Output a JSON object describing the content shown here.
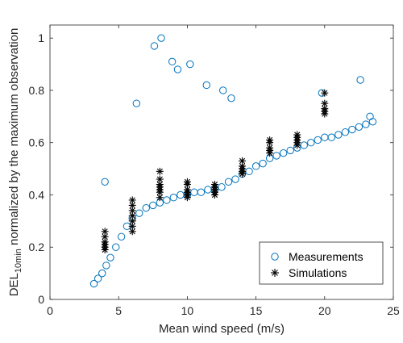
{
  "chart_data": {
    "type": "scatter",
    "xlabel": "Mean wind speed (m/s)",
    "ylabel_main": "DEL",
    "ylabel_sub": "10min",
    "ylabel_rest": " normalized by the maximum observation",
    "xlim": [
      0,
      25
    ],
    "ylim": [
      0,
      1.05
    ],
    "xticks": [
      0,
      5,
      10,
      15,
      20,
      25
    ],
    "yticks": [
      0,
      0.2,
      0.4,
      0.6,
      0.8,
      1
    ],
    "ytick_labels": [
      "0",
      "0.2",
      "0.4",
      "0.6",
      "0.8",
      "1"
    ],
    "grid": false,
    "legend_position": "bottom-right",
    "colors": {
      "measurements": "#0072BD",
      "simulations": "#000000"
    },
    "series": [
      {
        "name": "Measurements",
        "marker": "open-circle",
        "x": [
          3.2,
          3.5,
          3.8,
          4.1,
          4.4,
          4.8,
          5.2,
          5.6,
          6.0,
          6.5,
          7.0,
          7.5,
          8.0,
          8.5,
          9.0,
          9.5,
          10.0,
          10.5,
          11.0,
          11.5,
          12.0,
          12.5,
          13.0,
          13.5,
          14.0,
          14.5,
          15.0,
          15.5,
          16.0,
          16.5,
          17.0,
          17.5,
          18.0,
          18.5,
          19.0,
          19.5,
          20.0,
          20.5,
          21.0,
          21.5,
          22.0,
          22.5,
          23.0,
          23.5,
          4.0,
          6.3,
          7.6,
          8.1,
          8.9,
          9.3,
          10.2,
          11.4,
          12.6,
          13.2,
          19.8,
          22.6,
          23.3
        ],
        "y": [
          0.06,
          0.08,
          0.1,
          0.13,
          0.16,
          0.2,
          0.24,
          0.28,
          0.31,
          0.33,
          0.35,
          0.36,
          0.37,
          0.38,
          0.39,
          0.4,
          0.4,
          0.41,
          0.41,
          0.42,
          0.42,
          0.43,
          0.45,
          0.46,
          0.48,
          0.49,
          0.51,
          0.52,
          0.54,
          0.55,
          0.56,
          0.57,
          0.58,
          0.59,
          0.6,
          0.61,
          0.62,
          0.62,
          0.63,
          0.64,
          0.65,
          0.66,
          0.67,
          0.68,
          0.45,
          0.75,
          0.97,
          1.0,
          0.91,
          0.88,
          0.9,
          0.82,
          0.8,
          0.77,
          0.79,
          0.84,
          0.7
        ]
      },
      {
        "name": "Simulations",
        "marker": "asterisk",
        "x": [
          4,
          4,
          4,
          4,
          4,
          4,
          6,
          6,
          6,
          6,
          6,
          6,
          6,
          8,
          8,
          8,
          8,
          8,
          8,
          8,
          10,
          10,
          10,
          10,
          10,
          10,
          12,
          12,
          12,
          12,
          12,
          14,
          14,
          14,
          14,
          14,
          16,
          16,
          16,
          16,
          16,
          18,
          18,
          18,
          18,
          18,
          20,
          20,
          20,
          20,
          20
        ],
        "y": [
          0.19,
          0.2,
          0.21,
          0.22,
          0.24,
          0.26,
          0.26,
          0.28,
          0.3,
          0.32,
          0.34,
          0.36,
          0.38,
          0.39,
          0.41,
          0.42,
          0.43,
          0.44,
          0.46,
          0.49,
          0.39,
          0.4,
          0.41,
          0.42,
          0.44,
          0.45,
          0.4,
          0.41,
          0.42,
          0.43,
          0.44,
          0.48,
          0.49,
          0.5,
          0.51,
          0.53,
          0.56,
          0.57,
          0.58,
          0.6,
          0.61,
          0.59,
          0.6,
          0.61,
          0.62,
          0.63,
          0.71,
          0.72,
          0.73,
          0.75,
          0.79
        ]
      }
    ]
  }
}
